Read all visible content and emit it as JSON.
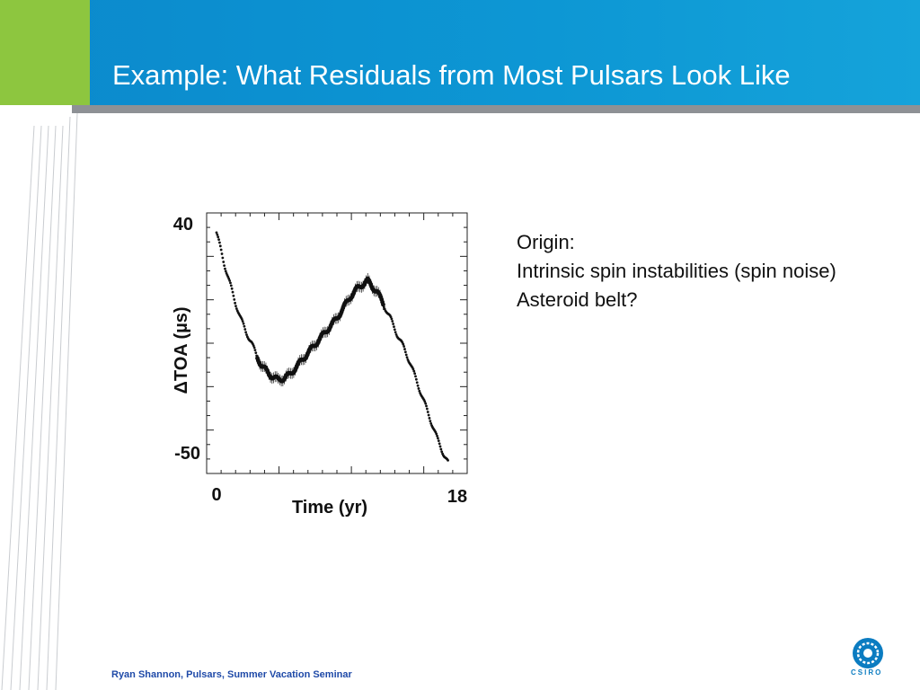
{
  "slide": {
    "title": "Example:  What Residuals from Most Pulsars Look Like",
    "notes": [
      "Origin:",
      "Intrinsic spin instabilities (spin noise)",
      "Asteroid belt?"
    ],
    "footer": "Ryan Shannon, Pulsars, Summer Vacation Seminar",
    "logo_text": "CSIRO"
  },
  "colors": {
    "header_blue": "#0d97d4",
    "header_green": "#8dc63f",
    "rule_gray": "#8e9195",
    "footer_blue": "#1f4aa8"
  },
  "chart_data": {
    "type": "scatter",
    "title": "",
    "xlabel": "Time (yr)",
    "ylabel": "ΔTOA (µs)",
    "xlim": [
      0,
      18
    ],
    "ylim": [
      -50,
      40
    ],
    "x_tick_labels": [
      "0",
      "18"
    ],
    "y_tick_labels": [
      "40",
      "-50"
    ],
    "series": [
      {
        "x": [
          0.0,
          0.3,
          0.6,
          1.0,
          1.4,
          1.8,
          2.2,
          2.6,
          3.0,
          3.4,
          3.8,
          4.2,
          4.6,
          5.0,
          5.5,
          6.0,
          6.5,
          7.0,
          7.5,
          8.0,
          8.5,
          9.0,
          9.5,
          10.0,
          10.5,
          11.0,
          11.3,
          11.6,
          12.0,
          12.3,
          12.6,
          13.0,
          13.5,
          14.0,
          14.5,
          15.0,
          15.5,
          16.0,
          16.5,
          17.0,
          17.3
        ],
        "y": [
          37,
          31,
          25,
          18,
          11,
          5,
          0,
          -4,
          -9,
          -13,
          -15,
          -17,
          -18,
          -17.5,
          -16,
          -13,
          -10,
          -7,
          -4,
          -1,
          2,
          5,
          9,
          13,
          16,
          18,
          19,
          17,
          15,
          12,
          9,
          5,
          -1,
          -6,
          -12,
          -19,
          -26,
          -33,
          -40,
          -46,
          -49
        ]
      }
    ]
  }
}
